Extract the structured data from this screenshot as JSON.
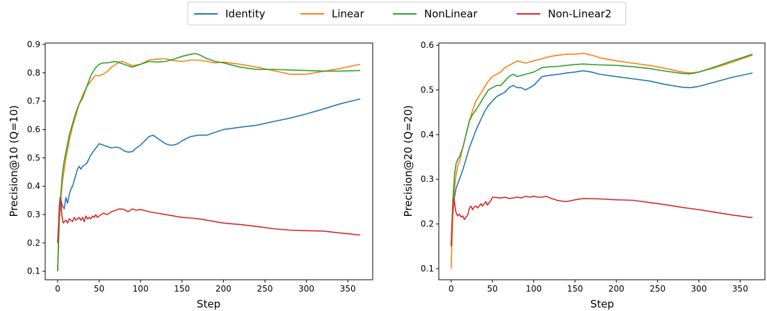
{
  "legend": {
    "entries": [
      {
        "name": "Identity",
        "color": "#1f77b4"
      },
      {
        "name": "Linear",
        "color": "#ff7f0e"
      },
      {
        "name": "NonLinear",
        "color": "#2ca02c"
      },
      {
        "name": "Non-Linear2",
        "color": "#d62728"
      }
    ]
  },
  "chart_data": [
    {
      "type": "line",
      "xlabel": "Step",
      "ylabel": "Precision@10 (Q=10)",
      "xlim": [
        -15,
        380
      ],
      "ylim": [
        0.07,
        0.905
      ],
      "xticks": [
        0,
        50,
        100,
        150,
        200,
        250,
        300,
        350
      ],
      "xtick_labels": [
        "0",
        "50",
        "100",
        "150",
        "200",
        "250",
        "300",
        "350"
      ],
      "yticks": [
        0.1,
        0.2,
        0.3,
        0.4,
        0.5,
        0.6,
        0.7,
        0.8,
        0.9
      ],
      "ytick_labels": [
        "0.1",
        "0.2",
        "0.3",
        "0.4",
        "0.5",
        "0.6",
        "0.7",
        "0.8",
        "0.9"
      ],
      "grid": false,
      "series": [
        {
          "name": "Identity",
          "color": "#1f77b4",
          "x": [
            0,
            2,
            4,
            6,
            8,
            10,
            12,
            14,
            16,
            18,
            20,
            22,
            24,
            26,
            28,
            30,
            35,
            40,
            45,
            50,
            55,
            60,
            65,
            70,
            75,
            80,
            85,
            90,
            95,
            100,
            105,
            110,
            115,
            120,
            125,
            130,
            135,
            140,
            145,
            150,
            160,
            170,
            180,
            190,
            200,
            220,
            240,
            260,
            280,
            300,
            320,
            340,
            365
          ],
          "y": [
            0.1,
            0.28,
            0.35,
            0.33,
            0.32,
            0.36,
            0.34,
            0.37,
            0.39,
            0.4,
            0.42,
            0.44,
            0.46,
            0.47,
            0.46,
            0.47,
            0.48,
            0.51,
            0.53,
            0.55,
            0.545,
            0.54,
            0.535,
            0.538,
            0.535,
            0.525,
            0.52,
            0.522,
            0.535,
            0.545,
            0.56,
            0.575,
            0.58,
            0.57,
            0.56,
            0.55,
            0.545,
            0.545,
            0.55,
            0.56,
            0.575,
            0.58,
            0.58,
            0.59,
            0.6,
            0.608,
            0.615,
            0.628,
            0.64,
            0.655,
            0.672,
            0.69,
            0.708
          ]
        },
        {
          "name": "Linear",
          "color": "#ff7f0e",
          "x": [
            0,
            2,
            4,
            6,
            8,
            10,
            14,
            18,
            22,
            26,
            30,
            35,
            40,
            45,
            50,
            55,
            60,
            65,
            70,
            75,
            80,
            90,
            100,
            110,
            120,
            130,
            140,
            150,
            160,
            170,
            180,
            190,
            200,
            220,
            240,
            260,
            280,
            300,
            320,
            340,
            365
          ],
          "y": [
            0.1,
            0.28,
            0.36,
            0.42,
            0.46,
            0.5,
            0.56,
            0.61,
            0.65,
            0.69,
            0.72,
            0.75,
            0.77,
            0.79,
            0.79,
            0.795,
            0.805,
            0.82,
            0.83,
            0.84,
            0.838,
            0.825,
            0.83,
            0.845,
            0.848,
            0.85,
            0.843,
            0.84,
            0.845,
            0.845,
            0.84,
            0.835,
            0.838,
            0.83,
            0.82,
            0.808,
            0.795,
            0.795,
            0.805,
            0.815,
            0.83
          ]
        },
        {
          "name": "NonLinear",
          "color": "#2ca02c",
          "x": [
            0,
            2,
            4,
            6,
            8,
            10,
            14,
            18,
            22,
            26,
            30,
            35,
            40,
            45,
            50,
            55,
            60,
            65,
            70,
            75,
            80,
            90,
            100,
            110,
            120,
            130,
            140,
            150,
            160,
            165,
            170,
            180,
            190,
            200,
            220,
            240,
            260,
            280,
            300,
            320,
            340,
            365
          ],
          "y": [
            0.1,
            0.3,
            0.38,
            0.45,
            0.49,
            0.52,
            0.58,
            0.62,
            0.66,
            0.69,
            0.71,
            0.75,
            0.79,
            0.815,
            0.83,
            0.835,
            0.835,
            0.838,
            0.84,
            0.835,
            0.83,
            0.82,
            0.83,
            0.84,
            0.838,
            0.84,
            0.848,
            0.858,
            0.865,
            0.868,
            0.865,
            0.85,
            0.84,
            0.835,
            0.82,
            0.812,
            0.812,
            0.81,
            0.808,
            0.806,
            0.806,
            0.808
          ]
        },
        {
          "name": "Non-Linear2",
          "color": "#d62728",
          "x": [
            0,
            1,
            2,
            3,
            4,
            5,
            6,
            7,
            8,
            10,
            12,
            14,
            16,
            18,
            20,
            22,
            24,
            26,
            28,
            30,
            32,
            34,
            36,
            38,
            40,
            42,
            44,
            46,
            48,
            50,
            55,
            60,
            65,
            70,
            75,
            80,
            85,
            90,
            95,
            100,
            110,
            120,
            130,
            140,
            150,
            160,
            170,
            180,
            190,
            200,
            220,
            240,
            260,
            280,
            300,
            320,
            340,
            365
          ],
          "y": [
            0.2,
            0.26,
            0.33,
            0.36,
            0.35,
            0.3,
            0.28,
            0.27,
            0.275,
            0.28,
            0.27,
            0.285,
            0.28,
            0.275,
            0.29,
            0.28,
            0.285,
            0.29,
            0.28,
            0.29,
            0.275,
            0.295,
            0.285,
            0.29,
            0.285,
            0.295,
            0.29,
            0.3,
            0.29,
            0.295,
            0.305,
            0.3,
            0.31,
            0.315,
            0.32,
            0.318,
            0.31,
            0.32,
            0.315,
            0.318,
            0.31,
            0.305,
            0.3,
            0.295,
            0.29,
            0.288,
            0.285,
            0.28,
            0.275,
            0.27,
            0.265,
            0.258,
            0.25,
            0.245,
            0.243,
            0.242,
            0.235,
            0.228
          ]
        }
      ]
    },
    {
      "type": "line",
      "xlabel": "Step",
      "ylabel": "Precision@20 (Q=20)",
      "xlim": [
        -15,
        380
      ],
      "ylim": [
        0.075,
        0.605
      ],
      "xticks": [
        0,
        50,
        100,
        150,
        200,
        250,
        300,
        350
      ],
      "xtick_labels": [
        "0",
        "50",
        "100",
        "150",
        "200",
        "250",
        "300",
        "350"
      ],
      "yticks": [
        0.1,
        0.2,
        0.3,
        0.4,
        0.5,
        0.6
      ],
      "ytick_labels": [
        "0.1",
        "0.2",
        "0.3",
        "0.4",
        "0.5",
        "0.6"
      ],
      "grid": false,
      "series": [
        {
          "name": "Identity",
          "color": "#1f77b4",
          "x": [
            0,
            2,
            4,
            6,
            8,
            10,
            14,
            18,
            22,
            26,
            30,
            35,
            40,
            45,
            50,
            55,
            60,
            65,
            70,
            75,
            80,
            85,
            90,
            95,
            100,
            105,
            110,
            120,
            130,
            140,
            150,
            160,
            170,
            180,
            200,
            220,
            240,
            260,
            280,
            290,
            300,
            320,
            340,
            365
          ],
          "y": [
            0.15,
            0.22,
            0.26,
            0.28,
            0.29,
            0.3,
            0.32,
            0.345,
            0.37,
            0.39,
            0.41,
            0.43,
            0.45,
            0.465,
            0.475,
            0.485,
            0.49,
            0.495,
            0.505,
            0.51,
            0.505,
            0.505,
            0.5,
            0.505,
            0.51,
            0.52,
            0.53,
            0.533,
            0.535,
            0.538,
            0.54,
            0.543,
            0.54,
            0.535,
            0.53,
            0.525,
            0.52,
            0.512,
            0.506,
            0.505,
            0.508,
            0.518,
            0.528,
            0.538
          ]
        },
        {
          "name": "Linear",
          "color": "#ff7f0e",
          "x": [
            0,
            2,
            4,
            6,
            8,
            10,
            14,
            18,
            22,
            26,
            30,
            35,
            40,
            45,
            50,
            55,
            60,
            65,
            70,
            75,
            80,
            90,
            100,
            110,
            120,
            130,
            140,
            150,
            160,
            170,
            180,
            200,
            220,
            240,
            260,
            280,
            290,
            300,
            320,
            340,
            365
          ],
          "y": [
            0.1,
            0.22,
            0.28,
            0.31,
            0.33,
            0.34,
            0.37,
            0.4,
            0.43,
            0.455,
            0.475,
            0.49,
            0.505,
            0.52,
            0.53,
            0.535,
            0.54,
            0.55,
            0.555,
            0.56,
            0.565,
            0.56,
            0.565,
            0.57,
            0.575,
            0.578,
            0.58,
            0.58,
            0.582,
            0.578,
            0.572,
            0.565,
            0.56,
            0.555,
            0.548,
            0.54,
            0.538,
            0.54,
            0.55,
            0.562,
            0.578
          ]
        },
        {
          "name": "NonLinear",
          "color": "#2ca02c",
          "x": [
            0,
            2,
            4,
            6,
            8,
            10,
            14,
            18,
            22,
            26,
            30,
            35,
            40,
            45,
            50,
            55,
            60,
            65,
            70,
            75,
            80,
            90,
            100,
            110,
            120,
            130,
            140,
            150,
            160,
            170,
            180,
            200,
            220,
            240,
            260,
            280,
            290,
            300,
            320,
            340,
            365
          ],
          "y": [
            0.15,
            0.25,
            0.31,
            0.335,
            0.345,
            0.35,
            0.37,
            0.4,
            0.43,
            0.445,
            0.455,
            0.47,
            0.485,
            0.5,
            0.505,
            0.51,
            0.51,
            0.52,
            0.53,
            0.535,
            0.53,
            0.535,
            0.54,
            0.55,
            0.552,
            0.553,
            0.555,
            0.557,
            0.558,
            0.557,
            0.556,
            0.555,
            0.552,
            0.548,
            0.542,
            0.537,
            0.536,
            0.54,
            0.552,
            0.565,
            0.58
          ]
        },
        {
          "name": "Non-Linear2",
          "color": "#d62728",
          "x": [
            0,
            1,
            2,
            3,
            4,
            5,
            6,
            8,
            10,
            12,
            14,
            16,
            18,
            20,
            22,
            24,
            26,
            28,
            30,
            32,
            34,
            36,
            38,
            40,
            42,
            44,
            46,
            48,
            50,
            55,
            60,
            65,
            70,
            75,
            80,
            85,
            90,
            95,
            100,
            105,
            110,
            115,
            120,
            130,
            140,
            150,
            160,
            180,
            200,
            220,
            240,
            260,
            280,
            300,
            320,
            340,
            365
          ],
          "y": [
            0.15,
            0.2,
            0.24,
            0.258,
            0.25,
            0.235,
            0.225,
            0.218,
            0.222,
            0.215,
            0.218,
            0.21,
            0.215,
            0.22,
            0.235,
            0.24,
            0.232,
            0.238,
            0.24,
            0.236,
            0.24,
            0.245,
            0.24,
            0.245,
            0.25,
            0.242,
            0.248,
            0.252,
            0.26,
            0.259,
            0.258,
            0.26,
            0.257,
            0.258,
            0.26,
            0.258,
            0.262,
            0.26,
            0.262,
            0.26,
            0.26,
            0.262,
            0.258,
            0.252,
            0.25,
            0.254,
            0.257,
            0.256,
            0.254,
            0.253,
            0.248,
            0.243,
            0.237,
            0.232,
            0.226,
            0.22,
            0.214
          ]
        }
      ]
    }
  ]
}
